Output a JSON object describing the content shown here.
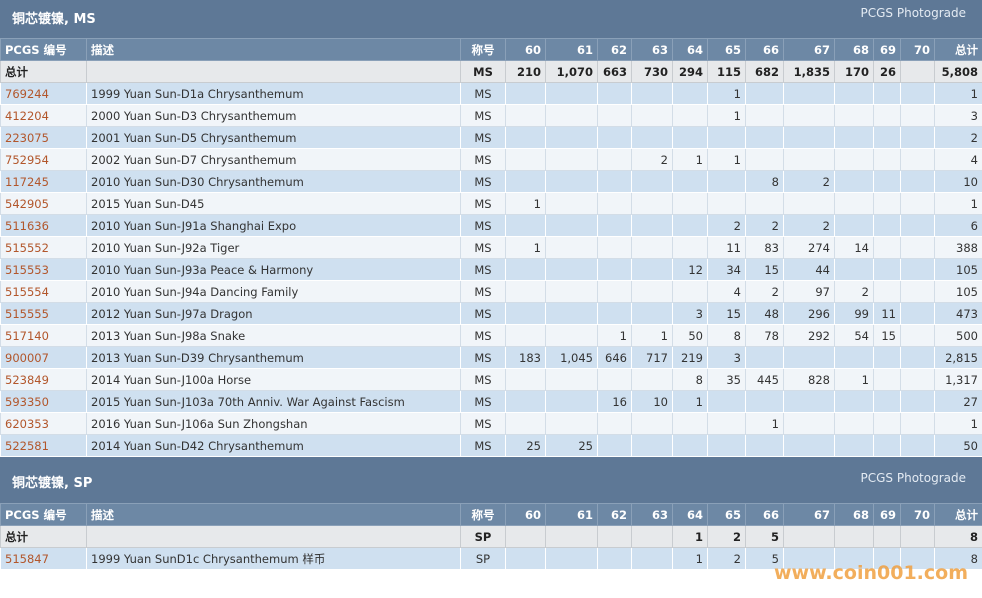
{
  "sections": [
    {
      "title": "铜芯镀镍, MS",
      "link": "PCGS Photograde",
      "columns": [
        "PCGS 编号",
        "描述",
        "称号",
        "60",
        "61",
        "62",
        "63",
        "64",
        "65",
        "66",
        "67",
        "68",
        "69",
        "70",
        "总计"
      ],
      "total": {
        "label": "总计",
        "grade": "MS",
        "counts": [
          "210",
          "1,070",
          "663",
          "730",
          "294",
          "115",
          "682",
          "1,835",
          "170",
          "26",
          null
        ],
        "sum": "5,808"
      },
      "rows": [
        {
          "pcgs": "769244",
          "desc": "1999 Yuan Sun-D1a Chrysanthemum",
          "grade": "MS",
          "counts": [
            null,
            null,
            null,
            null,
            null,
            "1",
            null,
            null,
            null,
            null,
            null
          ],
          "sum": "1"
        },
        {
          "pcgs": "412204",
          "desc": "2000 Yuan Sun-D3 Chrysanthemum",
          "grade": "MS",
          "counts": [
            null,
            null,
            null,
            null,
            null,
            "1",
            null,
            null,
            null,
            null,
            null
          ],
          "sum": "3"
        },
        {
          "pcgs": "223075",
          "desc": "2001 Yuan Sun-D5 Chrysanthemum",
          "grade": "MS",
          "counts": [
            null,
            null,
            null,
            null,
            null,
            null,
            null,
            null,
            null,
            null,
            null
          ],
          "sum": "2"
        },
        {
          "pcgs": "752954",
          "desc": "2002 Yuan Sun-D7 Chrysanthemum",
          "grade": "MS",
          "counts": [
            null,
            null,
            null,
            "2",
            "1",
            "1",
            null,
            null,
            null,
            null,
            null
          ],
          "sum": "4"
        },
        {
          "pcgs": "117245",
          "desc": "2010 Yuan Sun-D30 Chrysanthemum",
          "grade": "MS",
          "counts": [
            null,
            null,
            null,
            null,
            null,
            null,
            "8",
            "2",
            null,
            null,
            null
          ],
          "sum": "10"
        },
        {
          "pcgs": "542905",
          "desc": "2015 Yuan Sun-D45",
          "grade": "MS",
          "counts": [
            "1",
            null,
            null,
            null,
            null,
            null,
            null,
            null,
            null,
            null,
            null
          ],
          "sum": "1"
        },
        {
          "pcgs": "511636",
          "desc": "2010 Yuan Sun-J91a Shanghai Expo",
          "grade": "MS",
          "counts": [
            null,
            null,
            null,
            null,
            null,
            "2",
            "2",
            "2",
            null,
            null,
            null
          ],
          "sum": "6"
        },
        {
          "pcgs": "515552",
          "desc": "2010 Yuan Sun-J92a Tiger",
          "grade": "MS",
          "counts": [
            "1",
            null,
            null,
            null,
            null,
            "11",
            "83",
            "274",
            "14",
            null,
            null
          ],
          "sum": "388"
        },
        {
          "pcgs": "515553",
          "desc": "2010 Yuan Sun-J93a Peace & Harmony",
          "grade": "MS",
          "counts": [
            null,
            null,
            null,
            null,
            "12",
            "34",
            "15",
            "44",
            null,
            null,
            null
          ],
          "sum": "105"
        },
        {
          "pcgs": "515554",
          "desc": "2010 Yuan Sun-J94a Dancing Family",
          "grade": "MS",
          "counts": [
            null,
            null,
            null,
            null,
            null,
            "4",
            "2",
            "97",
            "2",
            null,
            null
          ],
          "sum": "105"
        },
        {
          "pcgs": "515555",
          "desc": "2012 Yuan Sun-J97a Dragon",
          "grade": "MS",
          "counts": [
            null,
            null,
            null,
            null,
            "3",
            "15",
            "48",
            "296",
            "99",
            "11",
            null
          ],
          "sum": "473"
        },
        {
          "pcgs": "517140",
          "desc": "2013 Yuan Sun-J98a Snake",
          "grade": "MS",
          "counts": [
            null,
            null,
            "1",
            "1",
            "50",
            "8",
            "78",
            "292",
            "54",
            "15",
            null
          ],
          "sum": "500"
        },
        {
          "pcgs": "900007",
          "desc": "2013 Yuan Sun-D39 Chrysanthemum",
          "grade": "MS",
          "counts": [
            "183",
            "1,045",
            "646",
            "717",
            "219",
            "3",
            null,
            null,
            null,
            null,
            null
          ],
          "sum": "2,815"
        },
        {
          "pcgs": "523849",
          "desc": "2014 Yuan Sun-J100a Horse",
          "grade": "MS",
          "counts": [
            null,
            null,
            null,
            null,
            "8",
            "35",
            "445",
            "828",
            "1",
            null,
            null
          ],
          "sum": "1,317"
        },
        {
          "pcgs": "593350",
          "desc": "2015 Yuan Sun-J103a 70th Anniv. War Against Fascism",
          "grade": "MS",
          "counts": [
            null,
            null,
            "16",
            "10",
            "1",
            null,
            null,
            null,
            null,
            null,
            null
          ],
          "sum": "27"
        },
        {
          "pcgs": "620353",
          "desc": "2016 Yuan Sun-J106a Sun Zhongshan",
          "grade": "MS",
          "counts": [
            null,
            null,
            null,
            null,
            null,
            null,
            "1",
            null,
            null,
            null,
            null
          ],
          "sum": "1"
        },
        {
          "pcgs": "522581",
          "desc": "2014 Yuan Sun-D42 Chrysanthemum",
          "grade": "MS",
          "counts": [
            "25",
            "25",
            null,
            null,
            null,
            null,
            null,
            null,
            null,
            null,
            null
          ],
          "sum": "50"
        }
      ]
    },
    {
      "title": "铜芯镀镍, SP",
      "link": "PCGS Photograde",
      "columns": [
        "PCGS 编号",
        "描述",
        "称号",
        "60",
        "61",
        "62",
        "63",
        "64",
        "65",
        "66",
        "67",
        "68",
        "69",
        "70",
        "总计"
      ],
      "total": {
        "label": "总计",
        "grade": "SP",
        "counts": [
          null,
          null,
          null,
          null,
          "1",
          "2",
          "5",
          null,
          null,
          null,
          null
        ],
        "sum": "8"
      },
      "rows": [
        {
          "pcgs": "515847",
          "desc": "1999 Yuan SunD1c Chrysanthemum 样币",
          "grade": "SP",
          "counts": [
            null,
            null,
            null,
            null,
            "1",
            "2",
            "5",
            null,
            null,
            null,
            null
          ],
          "sum": "8"
        }
      ]
    }
  ],
  "watermark": "www.coin001.com"
}
